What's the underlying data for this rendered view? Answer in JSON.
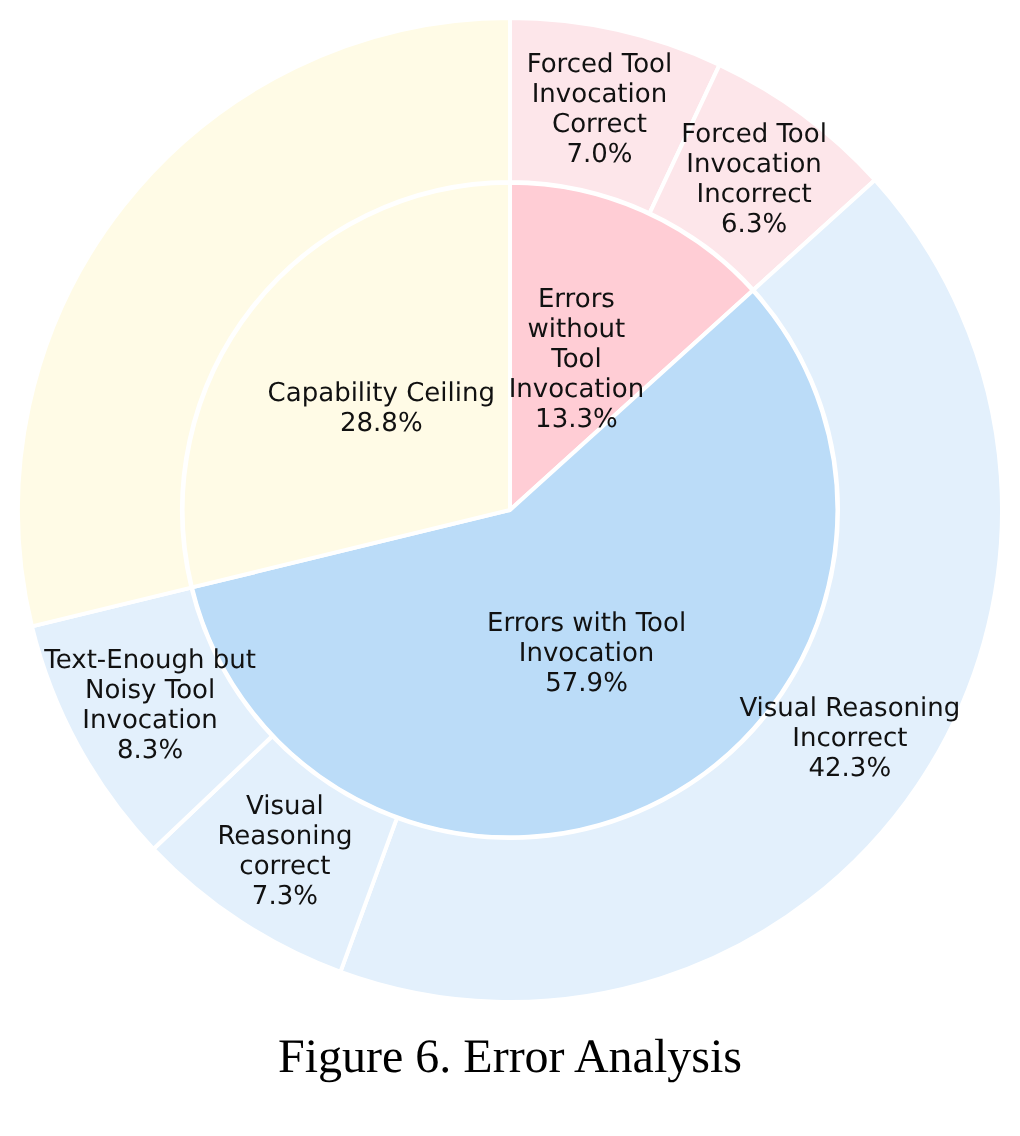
{
  "chart_data": [
    {
      "type": "pie",
      "legend": false,
      "categories": [
        "Errors without Tool Invocation",
        "Errors with Tool Invocation",
        "Capability Ceiling"
      ],
      "values": [
        13.3,
        57.9,
        28.8
      ],
      "colors": [
        "#ffcdd5",
        "#bbdcf8",
        "#fffbe6"
      ],
      "value_labels": [
        "13.3%",
        "57.9%",
        "28.8%"
      ],
      "annotations": [
        "Figure 6. Error Analysis"
      ]
    },
    {
      "type": "donut",
      "legend": false,
      "categories": [
        "Forced Tool Invocation Correct",
        "Forced Tool Invocation Incorrect",
        "Visual Reasoning Incorrect",
        "Visual Reasoning correct",
        "Text-Enough but Noisy Tool Invocation",
        null
      ],
      "values": [
        7.0,
        6.3,
        42.3,
        7.3,
        8.3,
        28.8
      ],
      "colors": [
        "#fde6ea",
        "#fde6ea",
        "#e3f0fc",
        "#e3f0fc",
        "#e3f0fc",
        "#fffbe6"
      ],
      "value_labels": [
        "7.0%",
        "6.3%",
        "42.3%",
        "7.3%",
        "8.3%",
        null
      ]
    }
  ]
}
